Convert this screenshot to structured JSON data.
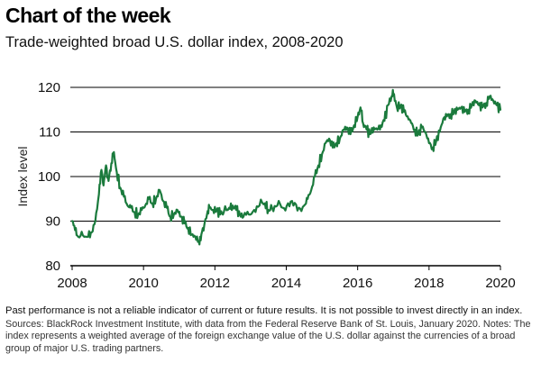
{
  "header": {
    "title": "Chart of the week",
    "subtitle": "Trade-weighted broad U.S. dollar index, 2008-2020"
  },
  "footer": {
    "disclaimer": "Past performance is not a reliable indicator of current or future results. It is not possible to invest directly in an index.",
    "sources": "Sources: BlackRock Investment Institute, with data from the Federal Reserve Bank of St. Louis, January 2020. Notes: The index represents a weighted average of the foreign exchange value of the U.S. dollar against the currencies of a broad group of major U.S. trading partners."
  },
  "chart_data": {
    "type": "line",
    "title": "Trade-weighted broad U.S. dollar index, 2008-2020",
    "xlabel": "",
    "ylabel": "Index level",
    "xlim": [
      2008,
      2020
    ],
    "ylim": [
      80,
      120
    ],
    "x_ticks": [
      "2008",
      "2010",
      "2012",
      "2014",
      "2016",
      "2018",
      "2020"
    ],
    "y_ticks": [
      "80",
      "90",
      "100",
      "110",
      "120"
    ],
    "grid": "horizontal",
    "color": "#1a7a3c",
    "series": [
      {
        "name": "",
        "points": [
          [
            2008.0,
            90.0
          ],
          [
            2008.08,
            88.0
          ],
          [
            2008.17,
            86.5
          ],
          [
            2008.3,
            86.8
          ],
          [
            2008.45,
            86.5
          ],
          [
            2008.55,
            87.5
          ],
          [
            2008.65,
            90.0
          ],
          [
            2008.75,
            96.0
          ],
          [
            2008.82,
            101.5
          ],
          [
            2008.88,
            98.0
          ],
          [
            2008.95,
            102.5
          ],
          [
            2009.02,
            99.0
          ],
          [
            2009.1,
            103.0
          ],
          [
            2009.17,
            105.5
          ],
          [
            2009.25,
            101.0
          ],
          [
            2009.35,
            97.5
          ],
          [
            2009.45,
            95.5
          ],
          [
            2009.55,
            93.5
          ],
          [
            2009.65,
            93.0
          ],
          [
            2009.75,
            92.0
          ],
          [
            2009.85,
            91.5
          ],
          [
            2009.95,
            92.5
          ],
          [
            2010.05,
            93.5
          ],
          [
            2010.15,
            95.0
          ],
          [
            2010.25,
            94.0
          ],
          [
            2010.35,
            95.0
          ],
          [
            2010.45,
            97.0
          ],
          [
            2010.55,
            94.5
          ],
          [
            2010.65,
            93.0
          ],
          [
            2010.75,
            91.0
          ],
          [
            2010.85,
            91.5
          ],
          [
            2010.95,
            92.5
          ],
          [
            2011.05,
            91.0
          ],
          [
            2011.15,
            89.5
          ],
          [
            2011.25,
            88.5
          ],
          [
            2011.35,
            87.0
          ],
          [
            2011.45,
            86.5
          ],
          [
            2011.55,
            85.5
          ],
          [
            2011.62,
            87.0
          ],
          [
            2011.7,
            89.0
          ],
          [
            2011.78,
            91.5
          ],
          [
            2011.85,
            93.0
          ],
          [
            2011.95,
            92.5
          ],
          [
            2012.05,
            92.5
          ],
          [
            2012.15,
            91.5
          ],
          [
            2012.25,
            92.0
          ],
          [
            2012.4,
            93.0
          ],
          [
            2012.5,
            93.5
          ],
          [
            2012.6,
            92.5
          ],
          [
            2012.7,
            91.5
          ],
          [
            2012.8,
            91.0
          ],
          [
            2012.95,
            91.5
          ],
          [
            2013.1,
            92.5
          ],
          [
            2013.25,
            93.5
          ],
          [
            2013.4,
            94.0
          ],
          [
            2013.5,
            92.5
          ],
          [
            2013.6,
            93.0
          ],
          [
            2013.75,
            93.5
          ],
          [
            2013.9,
            93.0
          ],
          [
            2014.05,
            94.0
          ],
          [
            2014.2,
            93.5
          ],
          [
            2014.35,
            93.0
          ],
          [
            2014.5,
            93.5
          ],
          [
            2014.6,
            95.0
          ],
          [
            2014.7,
            97.0
          ],
          [
            2014.8,
            100.0
          ],
          [
            2014.9,
            102.5
          ],
          [
            2015.0,
            105.0
          ],
          [
            2015.1,
            107.5
          ],
          [
            2015.2,
            108.5
          ],
          [
            2015.3,
            106.5
          ],
          [
            2015.4,
            107.5
          ],
          [
            2015.5,
            108.5
          ],
          [
            2015.6,
            110.5
          ],
          [
            2015.7,
            111.0
          ],
          [
            2015.8,
            109.5
          ],
          [
            2015.9,
            111.5
          ],
          [
            2016.0,
            113.5
          ],
          [
            2016.08,
            115.5
          ],
          [
            2016.15,
            112.0
          ],
          [
            2016.25,
            110.5
          ],
          [
            2016.35,
            109.5
          ],
          [
            2016.45,
            111.0
          ],
          [
            2016.55,
            110.5
          ],
          [
            2016.65,
            111.5
          ],
          [
            2016.75,
            112.5
          ],
          [
            2016.85,
            116.0
          ],
          [
            2016.95,
            118.0
          ],
          [
            2017.02,
            118.5
          ],
          [
            2017.1,
            115.5
          ],
          [
            2017.2,
            116.0
          ],
          [
            2017.3,
            114.5
          ],
          [
            2017.4,
            113.5
          ],
          [
            2017.5,
            112.0
          ],
          [
            2017.6,
            110.5
          ],
          [
            2017.7,
            109.5
          ],
          [
            2017.8,
            111.0
          ],
          [
            2017.9,
            110.0
          ],
          [
            2018.0,
            107.5
          ],
          [
            2018.1,
            106.5
          ],
          [
            2018.2,
            108.0
          ],
          [
            2018.3,
            110.0
          ],
          [
            2018.4,
            113.0
          ],
          [
            2018.5,
            113.5
          ],
          [
            2018.6,
            114.0
          ],
          [
            2018.7,
            114.5
          ],
          [
            2018.8,
            115.0
          ],
          [
            2018.9,
            115.5
          ],
          [
            2019.0,
            114.5
          ],
          [
            2019.1,
            115.0
          ],
          [
            2019.2,
            116.0
          ],
          [
            2019.3,
            117.0
          ],
          [
            2019.4,
            116.0
          ],
          [
            2019.5,
            115.5
          ],
          [
            2019.6,
            116.5
          ],
          [
            2019.7,
            118.0
          ],
          [
            2019.8,
            117.0
          ],
          [
            2019.9,
            116.0
          ],
          [
            2020.0,
            115.0
          ]
        ]
      }
    ]
  }
}
